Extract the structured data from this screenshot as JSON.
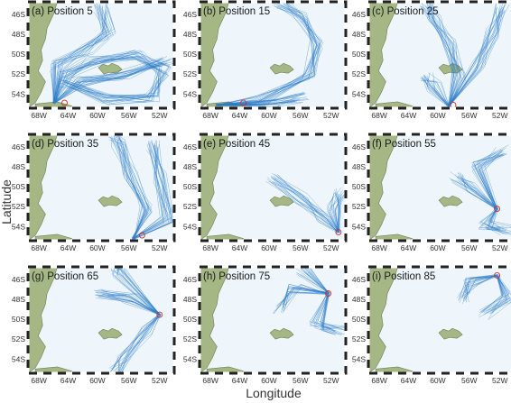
{
  "figure": {
    "xlabel": "Longitude",
    "ylabel": "Latitude",
    "x_ticks": [
      "68W",
      "64W",
      "60W",
      "56W",
      "52W"
    ],
    "y_ticks": [
      "46S",
      "48S",
      "50S",
      "52S",
      "54S"
    ],
    "colors": {
      "ocean": "#eef6fb",
      "land": "#a4b784",
      "land_edge": "#6f7f58",
      "track": "#2b7bc6",
      "release_marker": "#d62728",
      "frame": "#222222"
    },
    "panels": [
      {
        "label": "(a) Position 5"
      },
      {
        "label": "(b) Position 15"
      },
      {
        "label": "(c) Position 25"
      },
      {
        "label": "(d) Position 35"
      },
      {
        "label": "(e) Position 45"
      },
      {
        "label": "(f) Position 55"
      },
      {
        "label": "(g) Position 65"
      },
      {
        "label": "(h) Position 75"
      },
      {
        "label": "(i) Position 85"
      }
    ]
  }
}
